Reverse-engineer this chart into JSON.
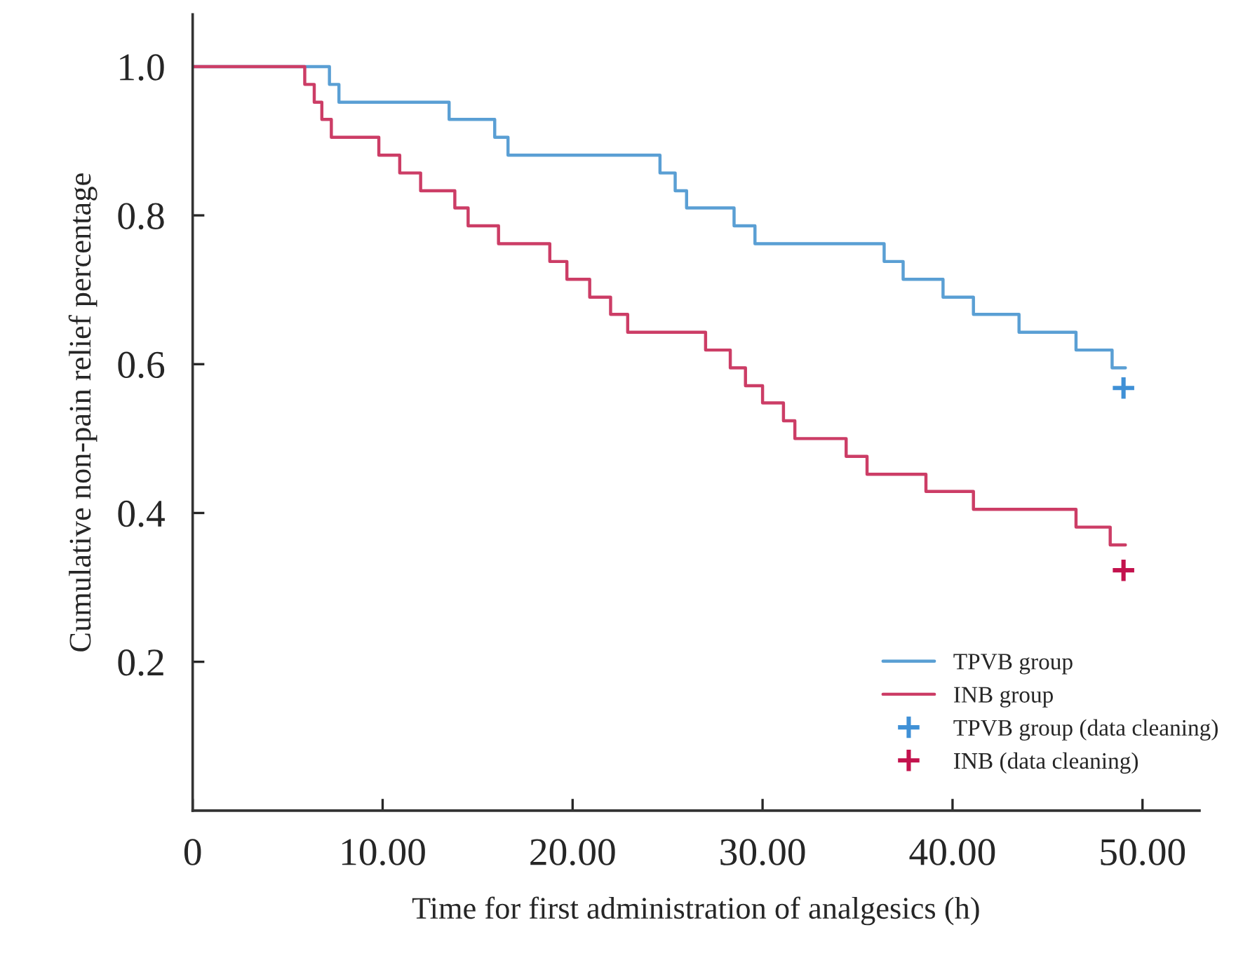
{
  "chart_data": {
    "type": "step",
    "xlabel": "Time for first administration of analgesics (h)",
    "ylabel": "Cumulative non-pain relief percentage",
    "xlim": [
      0,
      53
    ],
    "ylim": [
      0,
      1.07
    ],
    "xticks": [
      0,
      {
        "value": 10,
        "label": "10.00"
      },
      {
        "value": 20,
        "label": "20.00"
      },
      {
        "value": 30,
        "label": "30.00"
      },
      {
        "value": 40,
        "label": "40.00"
      },
      {
        "value": 50,
        "label": "50.00"
      }
    ],
    "yticks": [
      0.2,
      0.4,
      0.6,
      0.8,
      {
        "value": 1,
        "label": "1.0"
      }
    ],
    "legend": "bottom right",
    "series": [
      {
        "name": "TPVB group",
        "color": "#5a9fd4",
        "x": [
          0,
          7.2,
          7.7,
          13.5,
          15.9,
          16.6,
          24.6,
          25.4,
          26.0,
          28.5,
          29.6,
          36.4,
          37.4,
          39.5,
          41.1,
          43.5,
          46.5,
          48.4,
          49.1
        ],
        "values": [
          1.0,
          0.976,
          0.952,
          0.929,
          0.905,
          0.881,
          0.857,
          0.833,
          0.81,
          0.786,
          0.762,
          0.738,
          0.714,
          0.69,
          0.667,
          0.643,
          0.619,
          0.595,
          0.595
        ]
      },
      {
        "name": "INB group",
        "color": "#cc3d66",
        "x": [
          0,
          5.9,
          6.4,
          6.8,
          7.3,
          9.8,
          10.9,
          12.0,
          13.8,
          14.5,
          16.1,
          18.8,
          19.7,
          20.9,
          22.0,
          22.9,
          27.0,
          28.3,
          29.1,
          30.0,
          31.1,
          31.7,
          34.4,
          35.5,
          38.6,
          41.1,
          46.5,
          48.3,
          49.1
        ],
        "values": [
          1.0,
          0.976,
          0.952,
          0.929,
          0.905,
          0.881,
          0.857,
          0.833,
          0.81,
          0.786,
          0.762,
          0.738,
          0.714,
          0.69,
          0.667,
          0.643,
          0.619,
          0.595,
          0.571,
          0.548,
          0.524,
          0.5,
          0.476,
          0.452,
          0.429,
          0.405,
          0.381,
          0.357,
          0.357
        ]
      },
      {
        "name": "TPVB group (data cleaning)",
        "type": "scatter",
        "marker": "cross",
        "color": "#3f90d6",
        "x": [
          49.0
        ],
        "values": [
          0.568
        ]
      },
      {
        "name": "INB (data cleaning)",
        "type": "scatter",
        "marker": "cross",
        "color": "#c3124d",
        "x": [
          49.0
        ],
        "values": [
          0.323
        ]
      }
    ]
  }
}
